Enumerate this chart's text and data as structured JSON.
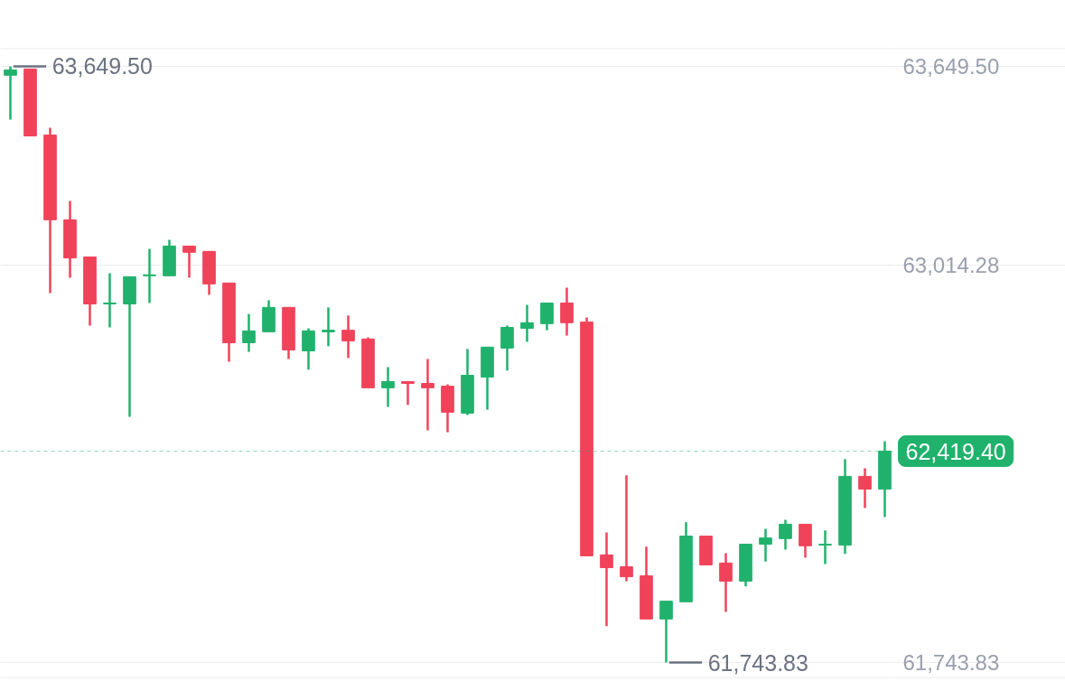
{
  "chart_data": {
    "type": "candlestick",
    "categories": [
      null,
      null,
      null,
      null,
      null,
      null,
      null,
      null,
      null,
      null,
      null,
      null,
      null,
      null,
      null,
      null,
      null,
      null,
      null,
      null,
      null,
      null,
      null,
      null,
      null,
      null,
      null,
      null,
      null,
      null,
      null,
      null,
      null,
      null,
      null,
      null,
      null,
      null,
      null,
      null,
      null,
      null,
      null,
      null,
      null
    ],
    "ohlc": [
      [
        63621,
        63649.5,
        63479,
        63638
      ],
      [
        63641,
        63641,
        63427,
        63427
      ],
      [
        63430,
        63453,
        62925,
        63159
      ],
      [
        63159,
        63219,
        62974,
        63037
      ],
      [
        63040,
        63040,
        62821,
        62890
      ],
      [
        62890,
        62988,
        62815,
        62893
      ],
      [
        62890,
        62977,
        62529,
        62977
      ],
      [
        62980,
        63066,
        62893,
        62983
      ],
      [
        62980,
        63095,
        62980,
        63075
      ],
      [
        63075,
        63075,
        62974,
        63055
      ],
      [
        63058,
        63058,
        62919,
        62954
      ],
      [
        62957,
        62957,
        62705,
        62766
      ],
      [
        62766,
        62858,
        62737,
        62804
      ],
      [
        62801,
        62902,
        62801,
        62879
      ],
      [
        62879,
        62879,
        62714,
        62743
      ],
      [
        62740,
        62812,
        62680,
        62804
      ],
      [
        62801,
        62879,
        62755,
        62806
      ],
      [
        62806,
        62853,
        62717,
        62772
      ],
      [
        62778,
        62783,
        62622,
        62622
      ],
      [
        62622,
        62688,
        62561,
        62642
      ],
      [
        62642,
        62642,
        62567,
        62636
      ],
      [
        62636,
        62714,
        62486,
        62622
      ],
      [
        62627,
        62633,
        62480,
        62544
      ],
      [
        62541,
        62746,
        62535,
        62662
      ],
      [
        62656,
        62752,
        62552,
        62752
      ],
      [
        62749,
        62821,
        62677,
        62815
      ],
      [
        62812,
        62887,
        62769,
        62830
      ],
      [
        62827,
        62893,
        62806,
        62893
      ],
      [
        62893,
        62942,
        62789,
        62830
      ],
      [
        62832,
        62847,
        62085,
        62085
      ],
      [
        62088,
        62160,
        61860,
        62047
      ],
      [
        62050,
        62342,
        62004,
        62018
      ],
      [
        62021,
        62114,
        61883,
        61883
      ],
      [
        61883,
        61940,
        61743.83,
        61940
      ],
      [
        61938,
        62192,
        61938,
        62148
      ],
      [
        62148,
        62148,
        62056,
        62056
      ],
      [
        62062,
        62093,
        61906,
        62004
      ],
      [
        62004,
        62122,
        61987,
        62122
      ],
      [
        62122,
        62171,
        62067,
        62142
      ],
      [
        62140,
        62200,
        62105,
        62186
      ],
      [
        62186,
        62186,
        62079,
        62117
      ],
      [
        62119,
        62166,
        62059,
        62122
      ],
      [
        62119,
        62394,
        62091,
        62339
      ],
      [
        62339,
        62365,
        62238,
        62298
      ],
      [
        62298,
        62451,
        62209,
        62419.4
      ]
    ],
    "colors": [
      "#20b26c",
      "#f0435a",
      "#f0435a",
      "#f0435a",
      "#f0435a",
      "#20b26c",
      "#20b26c",
      "#20b26c",
      "#20b26c",
      "#f0435a",
      "#f0435a",
      "#f0435a",
      "#20b26c",
      "#20b26c",
      "#f0435a",
      "#20b26c",
      "#20b26c",
      "#f0435a",
      "#f0435a",
      "#20b26c",
      "#f0435a",
      "#f0435a",
      "#f0435a",
      "#20b26c",
      "#20b26c",
      "#20b26c",
      "#20b26c",
      "#20b26c",
      "#f0435a",
      "#f0435a",
      "#f0435a",
      "#f0435a",
      "#f0435a",
      "#20b26c",
      "#20b26c",
      "#f0435a",
      "#f0435a",
      "#20b26c",
      "#20b26c",
      "#20b26c",
      "#f0435a",
      "#20b26c",
      "#20b26c",
      "#f0435a",
      "#20b26c"
    ],
    "ylim": [
      61695,
      63707
    ],
    "yticks": [
      {
        "value": 63649.5,
        "label": "63,649.50"
      },
      {
        "value": 63014.28,
        "label": "63,014.28"
      },
      {
        "value": 61743.83,
        "label": "61,743.83"
      }
    ],
    "grid": "y",
    "tick_labels": "y",
    "ref_lines": [
      {
        "axis": "y",
        "value": 62419.4,
        "label": "62,419.40",
        "color": "#20b26c"
      }
    ],
    "annotations": [
      "63,649.50",
      "61,743.83"
    ]
  }
}
